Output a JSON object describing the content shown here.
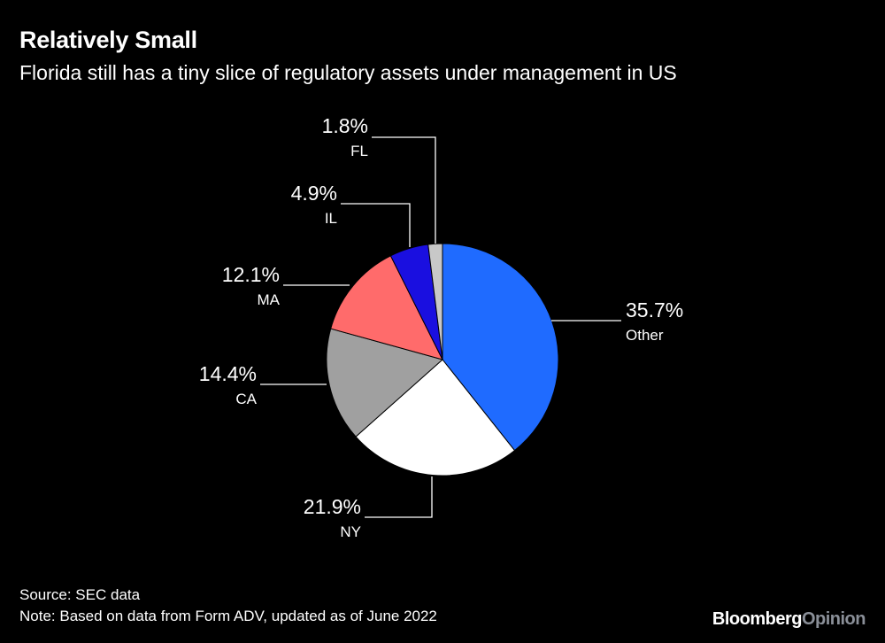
{
  "header": {
    "title": "Relatively Small",
    "subtitle": "Florida still has a tiny slice of regulatory assets under management in US"
  },
  "chart_data": {
    "type": "pie",
    "slices": [
      {
        "name": "Other",
        "label": "35.7%",
        "value": 35.7,
        "color": "#1f6bff"
      },
      {
        "name": "NY",
        "label": "21.9%",
        "value": 21.9,
        "color": "#ffffff"
      },
      {
        "name": "CA",
        "label": "14.4%",
        "value": 14.4,
        "color": "#a0a0a0"
      },
      {
        "name": "MA",
        "label": "12.1%",
        "value": 12.1,
        "color": "#ff6b6b"
      },
      {
        "name": "IL",
        "label": "4.9%",
        "value": 4.9,
        "color": "#1a0fe0"
      },
      {
        "name": "FL",
        "label": "1.8%",
        "value": 1.8,
        "color": "#c8c8c8"
      }
    ]
  },
  "footer": {
    "source": "Source: SEC data",
    "note": "Note: Based on data from Form ADV, updated as of June 2022",
    "brand_primary": "Bloomberg",
    "brand_secondary": "Opinion"
  }
}
